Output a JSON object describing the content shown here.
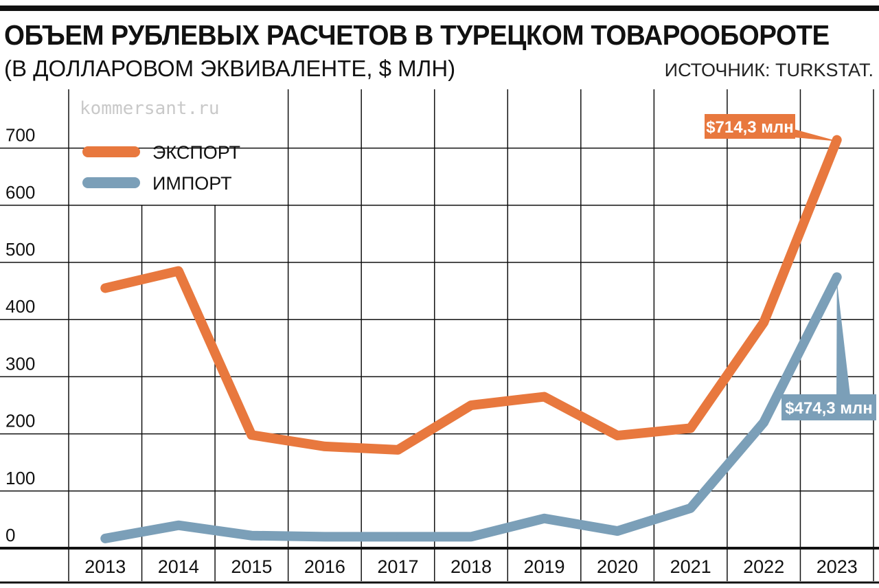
{
  "header": {
    "title": "ОБЪЕМ РУБЛЕВЫХ РАСЧЕТОВ В ТУРЕЦКОМ ТОВАРООБОРОТЕ",
    "subtitle": "(В ДОЛЛАРОВОМ ЭКВИВАЛЕНТЕ, $ МЛН)",
    "source": "ИСТОЧНИК: TURKSTAT."
  },
  "watermark": "kommersant.ru",
  "colors": {
    "export": "#E8783E",
    "import": "#7B9FB8",
    "grid": "#111111",
    "axis": "#111111"
  },
  "chart_data": {
    "type": "line",
    "title": "ОБЪЕМ РУБЛЕВЫХ РАСЧЕТОВ В ТУРЕЦКОМ ТОВАРООБОРОТЕ",
    "subtitle": "(В ДОЛЛАРОВОМ ЭКВИВАЛЕНТЕ, $ МЛН)",
    "xlabel": "",
    "ylabel": "",
    "categories": [
      "2013",
      "2014",
      "2015",
      "2016",
      "2017",
      "2018",
      "2019",
      "2020",
      "2021",
      "2022",
      "2023"
    ],
    "yticks": [
      0,
      100,
      200,
      300,
      400,
      500,
      600,
      700
    ],
    "ylim": [
      0,
      790
    ],
    "grid": true,
    "legend_position": "top-left",
    "series": [
      {
        "name": "ЭКСПОРТ",
        "color": "#E8783E",
        "values": [
          455,
          485,
          198,
          178,
          172,
          250,
          265,
          197,
          210,
          395,
          714.3
        ]
      },
      {
        "name": "ИМПОРТ",
        "color": "#7B9FB8",
        "values": [
          17,
          40,
          22,
          20,
          20,
          20,
          52,
          30,
          70,
          220,
          474.3
        ]
      }
    ],
    "annotations": [
      {
        "series": "ЭКСПОРТ",
        "category": "2023",
        "text": "$714,3 млн"
      },
      {
        "series": "ИМПОРТ",
        "category": "2023",
        "text": "$474,3 млн"
      }
    ]
  }
}
